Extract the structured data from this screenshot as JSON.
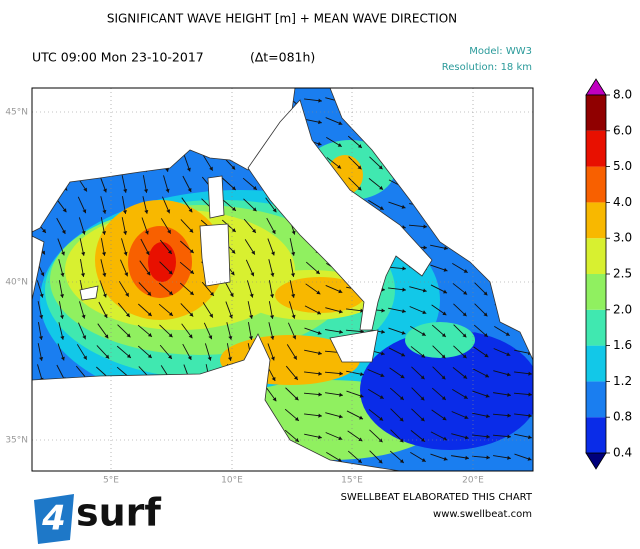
{
  "title": "SIGNIFICANT WAVE HEIGHT [m] + MEAN WAVE DIRECTION",
  "time": "UTC 09:00 Mon 23-10-2017",
  "lead": "(∆t=081h)",
  "model": "Model: WW3",
  "resolution": "Resolution: 18 km",
  "map": {
    "lat_labels": [
      "45°N",
      "40°N",
      "35°N"
    ],
    "lon_labels": [
      "5°E",
      "10°E",
      "15°E",
      "20°E"
    ]
  },
  "colorbar": {
    "ticks": [
      0.4,
      0.8,
      1.2,
      1.6,
      {
        "value": 2,
        "label": "2.0"
      },
      2.5,
      {
        "value": 3,
        "label": "3.0"
      },
      {
        "value": 4,
        "label": "4.0"
      },
      {
        "value": 5,
        "label": "5.0"
      },
      {
        "value": 6,
        "label": "6.0"
      },
      {
        "value": 8,
        "label": "8.0"
      }
    ],
    "colors": [
      "#00007a",
      "#0a2ce8",
      "#1a7ef0",
      "#12c8e8",
      "#40e8b0",
      "#90f060",
      "#d8f030",
      "#f8b800",
      "#f86000",
      "#e81000",
      "#900000",
      "#c000c0"
    ]
  },
  "credit": "SWELLBEAT ELABORATED THIS CHART",
  "url": "www.swellbeat.com",
  "logo_mark": "4",
  "logo_text": "surf"
}
